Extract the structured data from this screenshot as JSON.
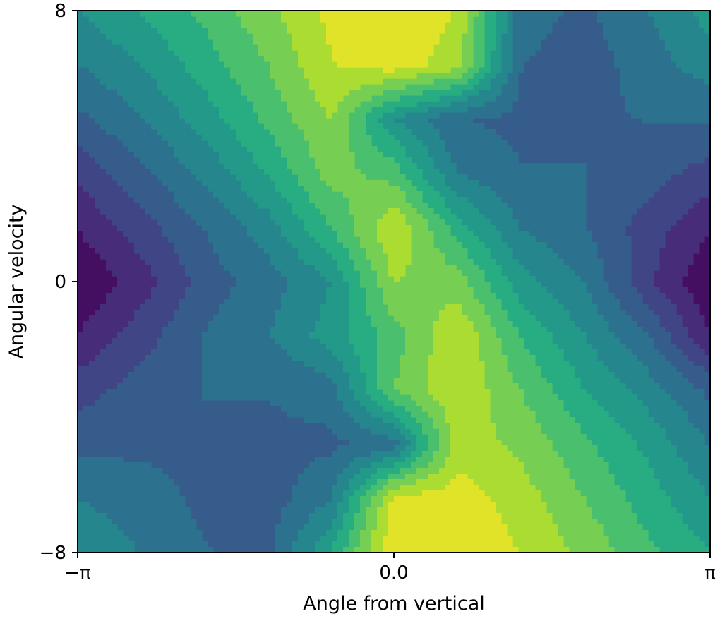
{
  "chart_data": {
    "type": "heatmap",
    "style": "filled-contour",
    "colormap": "viridis",
    "title": "",
    "xlabel": "Angle from vertical",
    "ylabel": "Angular velocity",
    "xlim": [
      -3.14159,
      3.14159
    ],
    "ylim": [
      -8,
      8
    ],
    "xticks": [
      {
        "value": -3.14159,
        "label": "−π"
      },
      {
        "value": 0.0,
        "label": "0.0"
      },
      {
        "value": 3.14159,
        "label": "π"
      }
    ],
    "yticks": [
      {
        "value": -8,
        "label": "−8"
      },
      {
        "value": 0,
        "label": "0"
      },
      {
        "value": 8,
        "label": "8"
      }
    ],
    "colorbar": false,
    "levels": 12,
    "value_range": [
      0.15,
      0.95
    ],
    "x": [
      -3.14159,
      -2.51327,
      -1.88496,
      -1.25664,
      -0.62832,
      0.0,
      0.62832,
      1.25664,
      1.88496,
      2.51327,
      3.14159
    ],
    "y": [
      8.0,
      6.4,
      4.8,
      3.2,
      1.6,
      0.0,
      -1.6,
      -3.2,
      -4.8,
      -6.4,
      -8.0
    ],
    "z": [
      [
        0.55,
        0.62,
        0.7,
        0.8,
        0.9,
        0.95,
        0.88,
        0.45,
        0.4,
        0.48,
        0.58
      ],
      [
        0.48,
        0.55,
        0.65,
        0.75,
        0.88,
        0.92,
        0.85,
        0.42,
        0.38,
        0.45,
        0.52
      ],
      [
        0.4,
        0.48,
        0.58,
        0.7,
        0.82,
        0.55,
        0.42,
        0.4,
        0.4,
        0.42,
        0.42
      ],
      [
        0.3,
        0.4,
        0.5,
        0.62,
        0.78,
        0.72,
        0.48,
        0.42,
        0.42,
        0.38,
        0.32
      ],
      [
        0.22,
        0.32,
        0.42,
        0.52,
        0.68,
        0.88,
        0.65,
        0.48,
        0.42,
        0.32,
        0.22
      ],
      [
        0.15,
        0.25,
        0.38,
        0.45,
        0.55,
        0.82,
        0.78,
        0.58,
        0.48,
        0.3,
        0.15
      ],
      [
        0.22,
        0.32,
        0.42,
        0.48,
        0.58,
        0.72,
        0.88,
        0.68,
        0.55,
        0.42,
        0.22
      ],
      [
        0.32,
        0.38,
        0.42,
        0.42,
        0.45,
        0.75,
        0.88,
        0.75,
        0.62,
        0.52,
        0.4
      ],
      [
        0.4,
        0.4,
        0.4,
        0.4,
        0.4,
        0.45,
        0.85,
        0.8,
        0.7,
        0.6,
        0.48
      ],
      [
        0.48,
        0.45,
        0.4,
        0.38,
        0.48,
        0.9,
        0.92,
        0.85,
        0.75,
        0.65,
        0.55
      ],
      [
        0.55,
        0.48,
        0.42,
        0.4,
        0.62,
        0.95,
        0.95,
        0.88,
        0.8,
        0.7,
        0.62
      ]
    ]
  }
}
